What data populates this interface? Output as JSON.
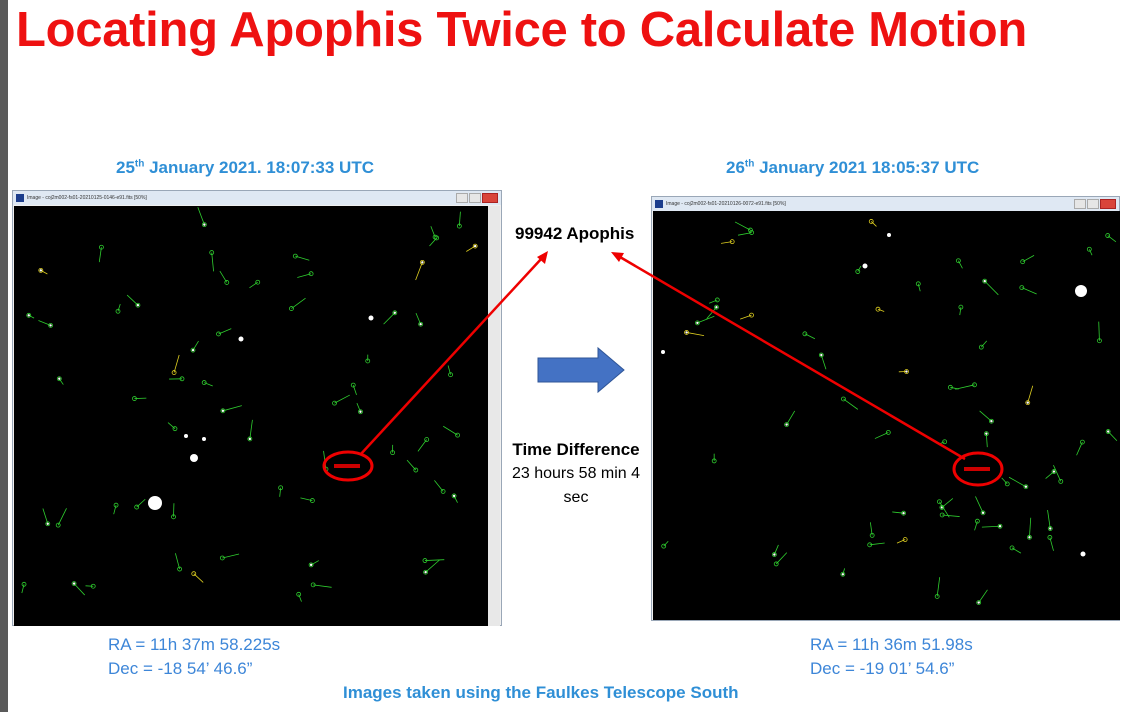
{
  "title": "Locating Apophis Twice to Calculate Motion",
  "left": {
    "caption": {
      "day": "25",
      "suffix": "th",
      "rest": " January 2021. 18:07:33 UTC"
    },
    "window_title": "Image - coj2m002-fs01-20210125-0146-e91.fits [50%]",
    "ra": "RA = 11h 37m 58.225s",
    "dec": "Dec = -18 54’ 46.6”"
  },
  "right": {
    "caption": {
      "day": "26",
      "suffix": "th",
      "rest": " January 2021 18:05:37 UTC"
    },
    "window_title": "Image - coj2m002-fs01-20210126-0072-e91.fits [50%]",
    "ra": "RA = 11h 36m 51.98s",
    "dec": "Dec = -19 01’ 54.6”"
  },
  "target_label": "99942 Apophis",
  "time_difference": {
    "heading": "Time Difference",
    "value": "23 hours 58 min 4 sec"
  },
  "footer": "Images taken using the Faulkes Telescope South"
}
